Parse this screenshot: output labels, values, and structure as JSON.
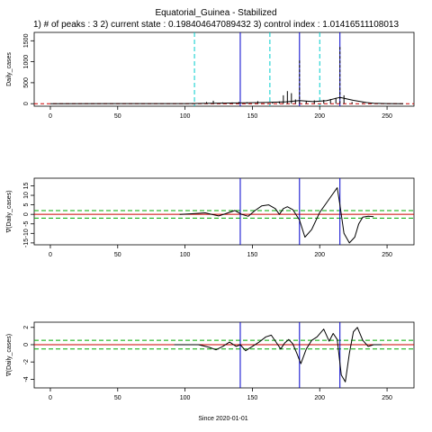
{
  "header": {
    "title": "Equatorial_Guinea  - Stabilized",
    "subtitle": "1) # of peaks :  3     2) current state :  0.198404647089432     3) control index :  1.01416511108013"
  },
  "colors": {
    "peak_line": "#0000cc",
    "threshold_dash": "#00cccc",
    "band_dash": "#00aa00",
    "zero_line": "#cc0000",
    "curve": "#000000"
  },
  "chart_data": [
    {
      "type": "line",
      "ylabel": "Daily_cases",
      "xlim": [
        -12,
        270
      ],
      "ylim": [
        -60,
        1700
      ],
      "xticks": [
        0,
        50,
        100,
        150,
        200,
        250
      ],
      "yticks": [
        0,
        500,
        1000,
        1500
      ],
      "vlines_blue": [
        141,
        185,
        215
      ],
      "vlines_cyan_dashed": [
        107,
        163,
        200
      ],
      "hline_red_dashed": 0,
      "spikes": [
        {
          "x": 116,
          "y": 40
        },
        {
          "x": 121,
          "y": 70
        },
        {
          "x": 128,
          "y": 30
        },
        {
          "x": 135,
          "y": 30
        },
        {
          "x": 140,
          "y": 40
        },
        {
          "x": 146,
          "y": 35
        },
        {
          "x": 154,
          "y": 60
        },
        {
          "x": 165,
          "y": 40
        },
        {
          "x": 170,
          "y": 55
        },
        {
          "x": 173,
          "y": 200
        },
        {
          "x": 176,
          "y": 300
        },
        {
          "x": 179,
          "y": 250
        },
        {
          "x": 182,
          "y": 100
        },
        {
          "x": 185,
          "y": 1050
        },
        {
          "x": 190,
          "y": 60
        },
        {
          "x": 196,
          "y": 80
        },
        {
          "x": 203,
          "y": 90
        },
        {
          "x": 208,
          "y": 110
        },
        {
          "x": 212,
          "y": 140
        },
        {
          "x": 215,
          "y": 1350
        },
        {
          "x": 218,
          "y": 200
        },
        {
          "x": 224,
          "y": 40
        },
        {
          "x": 232,
          "y": 20
        }
      ],
      "trend": [
        [
          0,
          0
        ],
        [
          100,
          2
        ],
        [
          120,
          8
        ],
        [
          140,
          18
        ],
        [
          160,
          28
        ],
        [
          175,
          45
        ],
        [
          185,
          75
        ],
        [
          195,
          50
        ],
        [
          205,
          70
        ],
        [
          215,
          150
        ],
        [
          225,
          80
        ],
        [
          235,
          25
        ],
        [
          240,
          10
        ],
        [
          250,
          2
        ],
        [
          262,
          0
        ]
      ]
    },
    {
      "type": "line",
      "ylabel": "∇(Daily_cases)",
      "xlim": [
        -12,
        270
      ],
      "ylim": [
        -16,
        19
      ],
      "xticks": [
        0,
        50,
        100,
        150,
        200,
        250
      ],
      "yticks": [
        -15,
        -10,
        -5,
        0,
        5,
        10,
        15
      ],
      "vlines_blue": [
        141,
        185,
        215
      ],
      "hlines_green_dashed": [
        2,
        -2
      ],
      "hline_red_solid": 0,
      "curve": [
        [
          96,
          0
        ],
        [
          105,
          0.3
        ],
        [
          115,
          0.8
        ],
        [
          120,
          0
        ],
        [
          125,
          -0.8
        ],
        [
          130,
          0.3
        ],
        [
          137,
          2
        ],
        [
          142,
          0
        ],
        [
          147,
          -1
        ],
        [
          152,
          2
        ],
        [
          157,
          4.5
        ],
        [
          162,
          5
        ],
        [
          167,
          3
        ],
        [
          170,
          0
        ],
        [
          173,
          3
        ],
        [
          176,
          4
        ],
        [
          180,
          2.5
        ],
        [
          185,
          -3
        ],
        [
          189,
          -12
        ],
        [
          194,
          -8
        ],
        [
          200,
          1
        ],
        [
          205,
          6
        ],
        [
          209,
          10
        ],
        [
          213,
          14
        ],
        [
          215,
          5
        ],
        [
          218,
          -10
        ],
        [
          222,
          -15
        ],
        [
          226,
          -12
        ],
        [
          229,
          -5
        ],
        [
          232,
          -1.5
        ],
        [
          236,
          -1
        ],
        [
          240,
          -1.2
        ]
      ]
    },
    {
      "type": "line",
      "ylabel": "∇(Daily_cases)",
      "xlim": [
        -12,
        270
      ],
      "ylim": [
        -5,
        2.6
      ],
      "xticks": [
        0,
        50,
        100,
        150,
        200,
        250
      ],
      "yticks": [
        -4,
        -2,
        0,
        2
      ],
      "vlines_blue": [
        141,
        185,
        215
      ],
      "hlines_green_dashed": [
        0.5,
        -0.5
      ],
      "hline_red_solid": 0,
      "curve": [
        [
          92,
          0
        ],
        [
          105,
          0
        ],
        [
          110,
          0
        ],
        [
          118,
          -0.3
        ],
        [
          123,
          -0.6
        ],
        [
          128,
          -0.2
        ],
        [
          133,
          0.3
        ],
        [
          138,
          -0.2
        ],
        [
          141,
          0
        ],
        [
          145,
          -0.7
        ],
        [
          150,
          -0.2
        ],
        [
          155,
          0.3
        ],
        [
          160,
          0.9
        ],
        [
          164,
          1.1
        ],
        [
          168,
          0.2
        ],
        [
          171,
          -0.5
        ],
        [
          174,
          0.2
        ],
        [
          177,
          0.6
        ],
        [
          180,
          0.1
        ],
        [
          183,
          -1
        ],
        [
          186,
          -2.2
        ],
        [
          190,
          -0.5
        ],
        [
          194,
          0.5
        ],
        [
          198,
          0.9
        ],
        [
          203,
          1.8
        ],
        [
          207,
          0.4
        ],
        [
          210,
          1.3
        ],
        [
          213,
          0.6
        ],
        [
          216,
          -3.5
        ],
        [
          219,
          -4.3
        ],
        [
          222,
          -1
        ],
        [
          225,
          1.5
        ],
        [
          228,
          2
        ],
        [
          232,
          0.5
        ],
        [
          236,
          -0.2
        ],
        [
          240,
          0
        ],
        [
          246,
          0
        ]
      ]
    }
  ],
  "xlabel": "Since 2020-01-01"
}
